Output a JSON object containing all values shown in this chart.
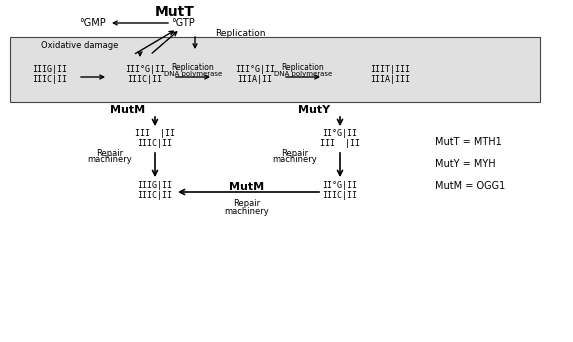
{
  "bg_color": "#ffffff",
  "box_bg": "#e0e0e0",
  "title": "MutT",
  "legend_lines": [
    "MutT = MTH1",
    "MutY = MYH",
    "MutM = OGG1"
  ]
}
